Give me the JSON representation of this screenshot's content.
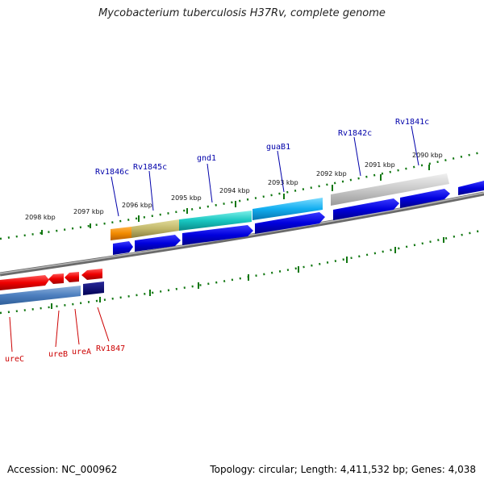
{
  "header": {
    "title": "Mycobacterium tuberculosis H37Rv, complete genome"
  },
  "footer": {
    "accession": "Accession: NC_000962",
    "summary": "Topology: circular; Length: 4,411,532 bp; Genes: 4,038"
  },
  "scale_labels": [
    {
      "text": "2090 kbp"
    },
    {
      "text": "2091 kbp"
    },
    {
      "text": "2092 kbp"
    },
    {
      "text": "2093 kbp"
    },
    {
      "text": "2094 kbp"
    },
    {
      "text": "2095 kbp"
    },
    {
      "text": "2096 kbp"
    },
    {
      "text": "2097 kbp"
    },
    {
      "text": "2098 kbp"
    }
  ],
  "genes_top": [
    {
      "name": "Rv1841c"
    },
    {
      "name": "Rv1842c"
    },
    {
      "name": "guaB1"
    },
    {
      "name": "gnd1"
    },
    {
      "name": "Rv1845c"
    },
    {
      "name": "Rv1846c"
    }
  ],
  "genes_bottom": [
    {
      "name": "ureC"
    },
    {
      "name": "ureB"
    },
    {
      "name": "ureA"
    },
    {
      "name": "Rv1847"
    }
  ],
  "colors": {
    "forward_strand": "#cc0000",
    "reverse_strand": "#0000cc",
    "backbone": "#777777",
    "ticks": "#117711"
  }
}
